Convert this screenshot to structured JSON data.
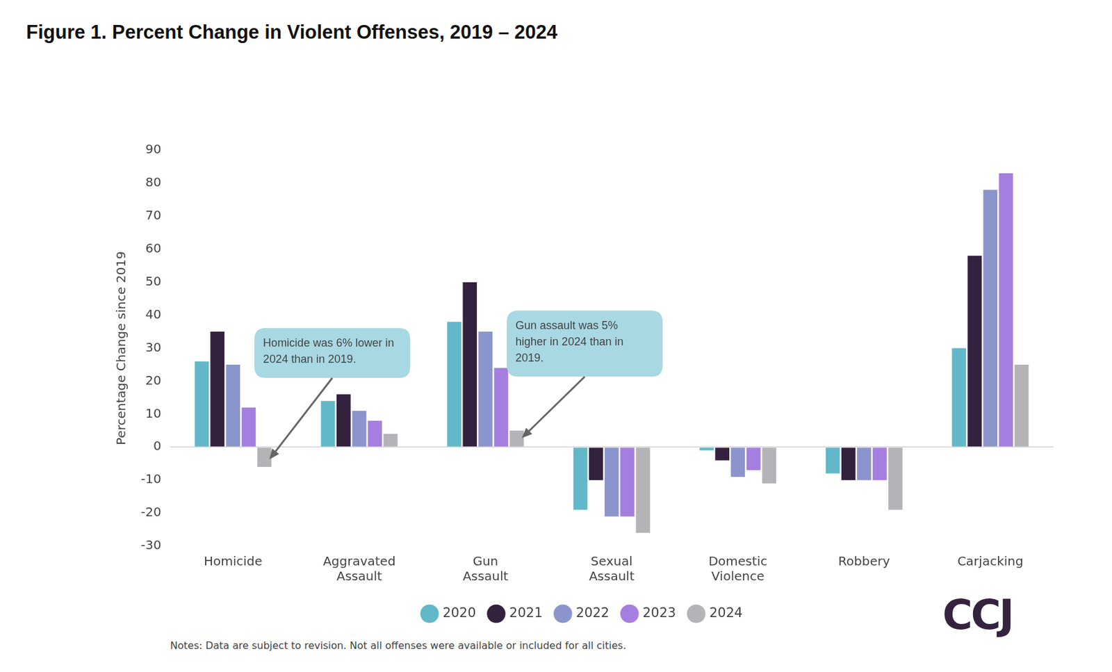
{
  "chart_data": {
    "type": "bar",
    "title": "Figure 1. Percent Change in Violent Offenses, 2019 – 2024",
    "y_label": "Percentage Change since 2019",
    "categories": [
      "Homicide",
      "Aggravated Assault",
      "Gun Assault",
      "Sexual Assault",
      "Domestic Violence",
      "Robbery",
      "Carjacking"
    ],
    "series": [
      {
        "name": "2020",
        "color": "#62b8c8",
        "values": [
          26,
          14,
          38,
          -19,
          -1,
          -8,
          30
        ]
      },
      {
        "name": "2021",
        "color": "#33213d",
        "values": [
          35,
          16,
          50,
          -10,
          -4,
          -10,
          58
        ]
      },
      {
        "name": "2022",
        "color": "#8b95cc",
        "values": [
          25,
          11,
          35,
          -21,
          -9,
          -10,
          78
        ]
      },
      {
        "name": "2023",
        "color": "#a57fdf",
        "values": [
          12,
          8,
          24,
          -21,
          -7,
          -10,
          83
        ]
      },
      {
        "name": "2024",
        "color": "#b3b3b8",
        "values": [
          -6,
          4,
          5,
          -26,
          -11,
          -19,
          25
        ]
      }
    ],
    "ylim": [
      -30,
      90
    ],
    "yticks": [
      -30,
      -20,
      -10,
      0,
      10,
      20,
      30,
      40,
      50,
      60,
      70,
      80,
      90
    ],
    "grid": false,
    "legend": "bottom",
    "annotations": [
      {
        "text": "Homicide was 6% lower in 2024 than in 2019.",
        "category": "Homicide",
        "series": "2024"
      },
      {
        "text": "Gun assault was 5% higher in 2024 than in 2019.",
        "category": "Gun Assault",
        "series": "2024"
      }
    ],
    "notes": "Notes: Data are subject to revision. Not all offenses were available or included for all cities.",
    "logo": "CCJ"
  }
}
